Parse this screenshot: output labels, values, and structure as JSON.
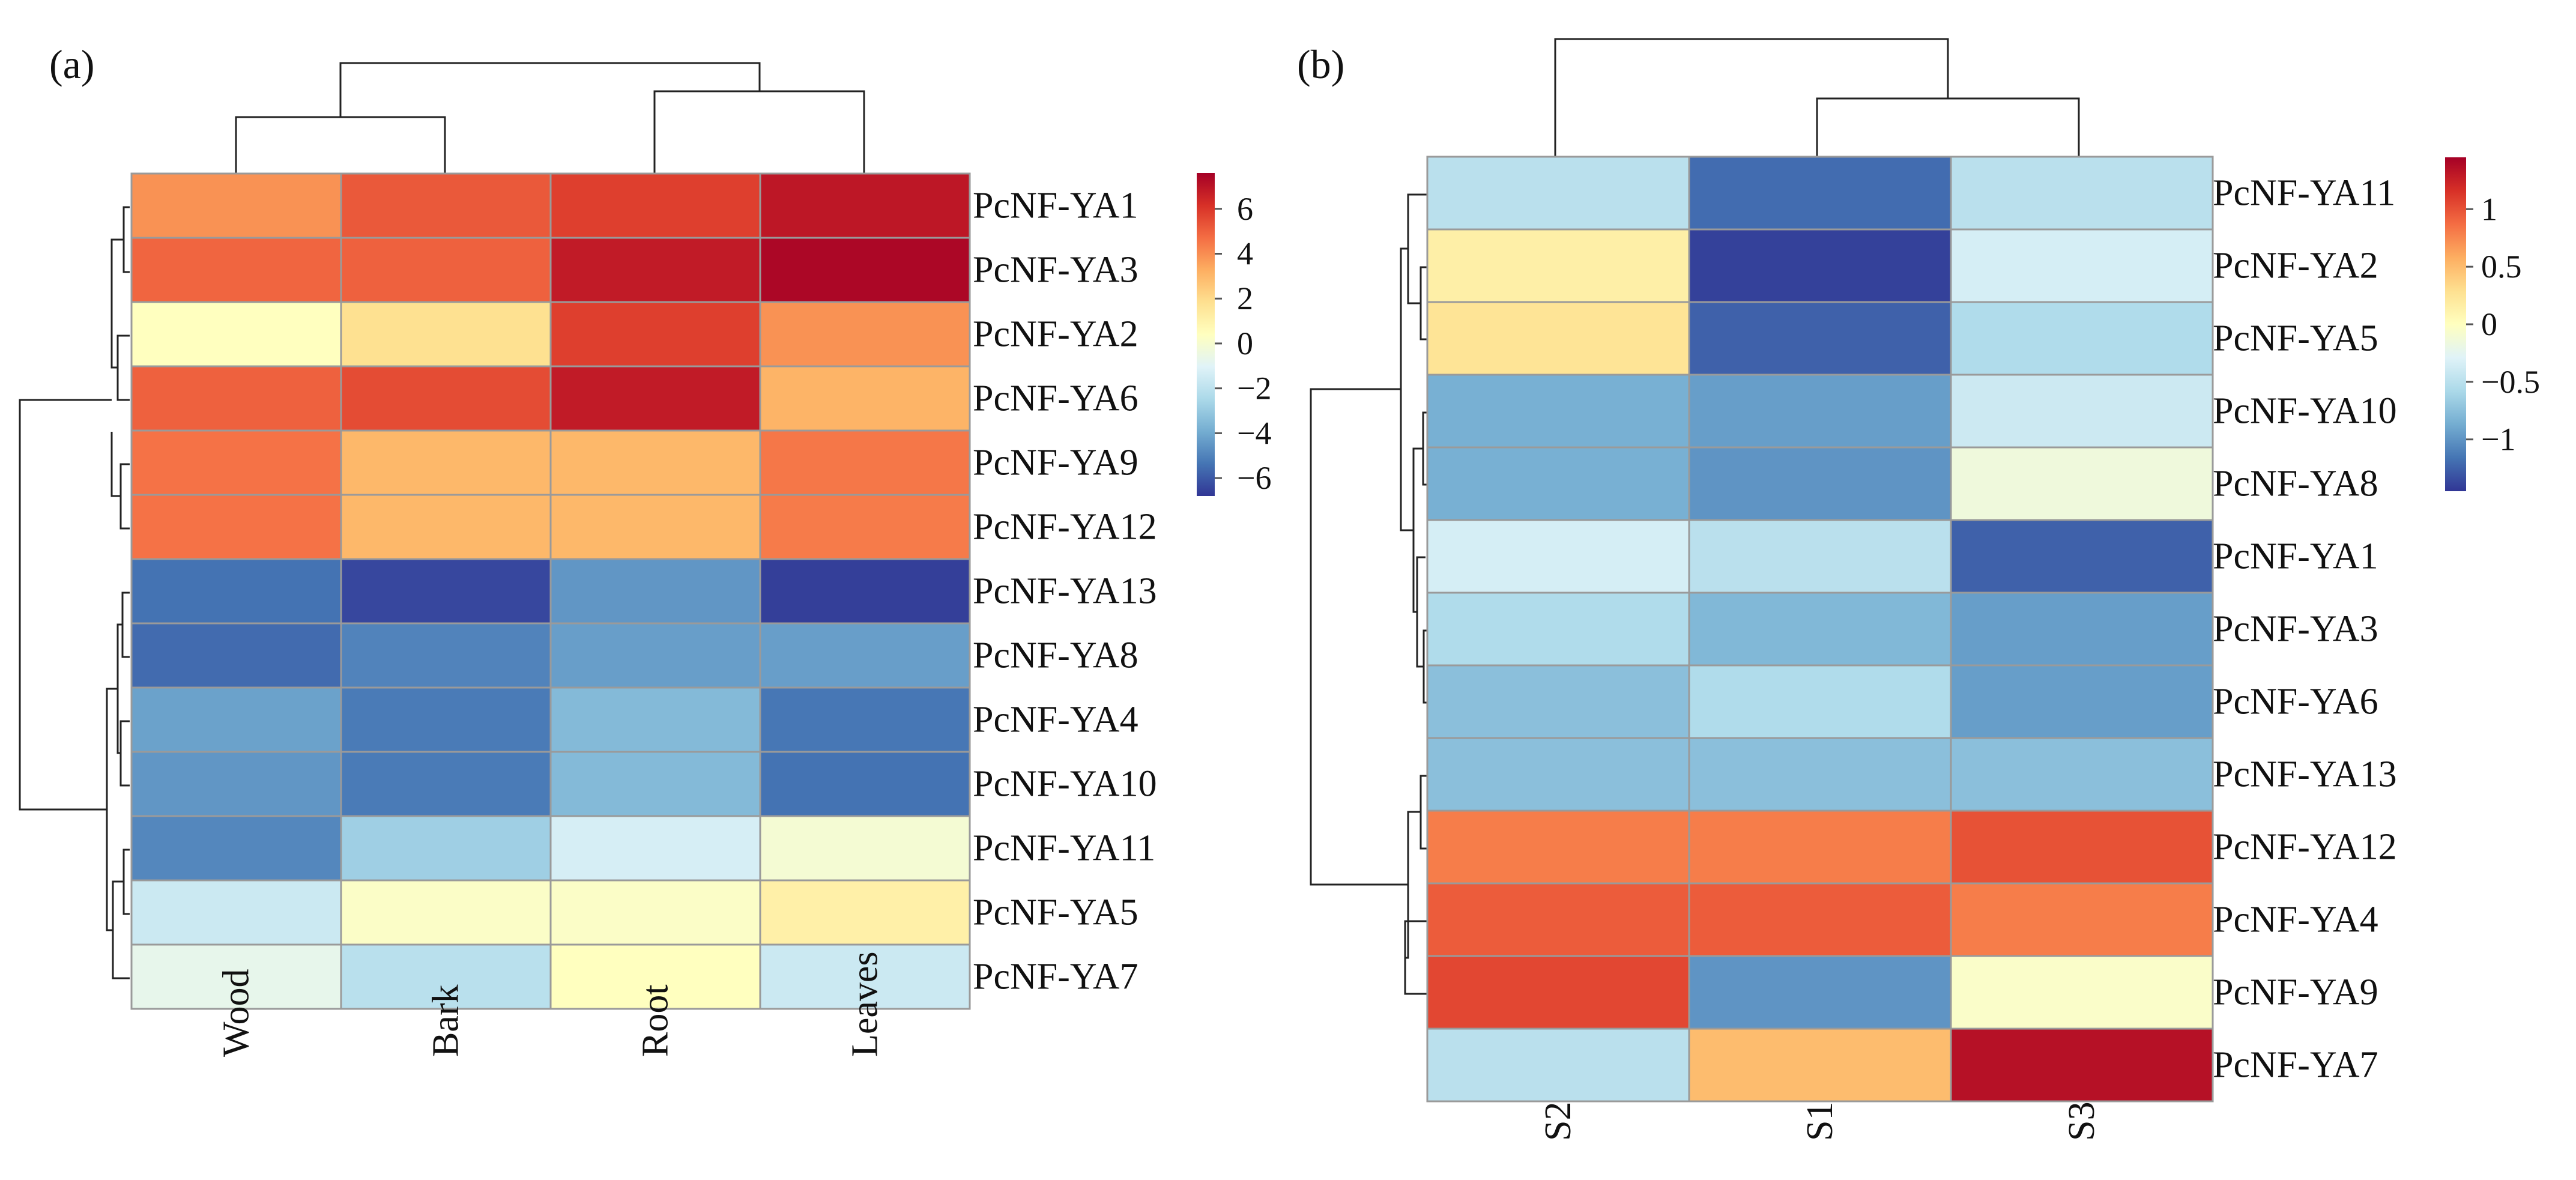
{
  "chart_data": [
    {
      "type": "heatmap",
      "panel_label": "(a)",
      "title": "",
      "xlabel": "",
      "ylabel": "",
      "columns": [
        "Wood",
        "Bark",
        "Root",
        "Leaves"
      ],
      "rows": [
        "PcNF-YA1",
        "PcNF-YA3",
        "PcNF-YA2",
        "PcNF-YA6",
        "PcNF-YA9",
        "PcNF-YA12",
        "PcNF-YA13",
        "PcNF-YA8",
        "PcNF-YA4",
        "PcNF-YA10",
        "PcNF-YA11",
        "PcNF-YA5",
        "PcNF-YA7"
      ],
      "values": [
        [
          3.9,
          5.2,
          5.8,
          6.9
        ],
        [
          4.9,
          5.0,
          6.8,
          7.4
        ],
        [
          0.4,
          1.8,
          5.8,
          3.9
        ],
        [
          5.0,
          5.5,
          6.8,
          3.1
        ],
        [
          4.6,
          3.0,
          3.0,
          4.5
        ],
        [
          4.6,
          3.0,
          3.0,
          4.4
        ],
        [
          -5.4,
          -6.4,
          -4.5,
          -6.6
        ],
        [
          -5.6,
          -5.0,
          -4.3,
          -4.3
        ],
        [
          -4.2,
          -5.2,
          -3.5,
          -5.3
        ],
        [
          -4.5,
          -5.2,
          -3.5,
          -5.4
        ],
        [
          -4.9,
          -2.8,
          -1.3,
          -0.1
        ],
        [
          -1.6,
          0.2,
          0.2,
          1.1
        ],
        [
          -0.7,
          -2.1,
          0.4,
          -1.6
        ]
      ],
      "colorbar": {
        "min": -6.8,
        "max": 7.6,
        "ticks": [
          6,
          4,
          2,
          0,
          -2,
          -4,
          -6
        ],
        "tick_labels": [
          "6",
          "4",
          "2",
          "0",
          "−2",
          "−4",
          "−6"
        ]
      },
      "row_dendrogram": [
        "PcNF-YA1",
        "PcNF-YA3",
        "PcNF-YA2",
        "PcNF-YA6",
        "PcNF-YA9",
        "PcNF-YA12",
        "PcNF-YA13",
        "PcNF-YA8",
        "PcNF-YA4",
        "PcNF-YA10",
        "PcNF-YA11",
        "PcNF-YA5",
        "PcNF-YA7"
      ],
      "column_dendrogram": [
        "Wood",
        "Bark",
        "Root",
        "Leaves"
      ]
    },
    {
      "type": "heatmap",
      "panel_label": "(b)",
      "title": "",
      "xlabel": "",
      "ylabel": "",
      "columns": [
        "S2",
        "S1",
        "S3"
      ],
      "rows": [
        "PcNF-YA11",
        "PcNF-YA2",
        "PcNF-YA5",
        "PcNF-YA10",
        "PcNF-YA8",
        "PcNF-YA1",
        "PcNF-YA3",
        "PcNF-YA6",
        "PcNF-YA13",
        "PcNF-YA12",
        "PcNF-YA4",
        "PcNF-YA9",
        "PcNF-YA7"
      ],
      "values": [
        [
          -0.5,
          -1.2,
          -0.5
        ],
        [
          0.15,
          -1.4,
          -0.35
        ],
        [
          0.25,
          -1.25,
          -0.55
        ],
        [
          -0.85,
          -0.95,
          -0.4
        ],
        [
          -0.85,
          -1.0,
          -0.15
        ],
        [
          -0.35,
          -0.5,
          -1.25
        ],
        [
          -0.55,
          -0.8,
          -0.95
        ],
        [
          -0.75,
          -0.55,
          -0.95
        ],
        [
          -0.75,
          -0.75,
          -0.75
        ],
        [
          0.8,
          0.8,
          1.0
        ],
        [
          0.95,
          0.95,
          0.8
        ],
        [
          1.05,
          -1.0,
          -0.05
        ],
        [
          -0.5,
          0.5,
          1.35
        ]
      ],
      "colorbar": {
        "min": -1.45,
        "max": 1.45,
        "ticks": [
          1,
          0.5,
          0,
          -0.5,
          -1
        ],
        "tick_labels": [
          "1",
          "0.5",
          "0",
          "−0.5",
          "−1"
        ]
      },
      "row_dendrogram": [
        "PcNF-YA11",
        "PcNF-YA2",
        "PcNF-YA5",
        "PcNF-YA10",
        "PcNF-YA8",
        "PcNF-YA1",
        "PcNF-YA3",
        "PcNF-YA6",
        "PcNF-YA13",
        "PcNF-YA12",
        "PcNF-YA4",
        "PcNF-YA9",
        "PcNF-YA7"
      ],
      "column_dendrogram": [
        "S2",
        "S1",
        "S3"
      ]
    }
  ],
  "colors": {
    "palette": [
      "#313695",
      "#4575b4",
      "#74add1",
      "#abd9e9",
      "#e0f3f8",
      "#ffffbf",
      "#fee090",
      "#fdae61",
      "#f46d43",
      "#d73027",
      "#a50026"
    ],
    "cell_border": "#9a9a9a",
    "dendrogram": "#222222"
  }
}
